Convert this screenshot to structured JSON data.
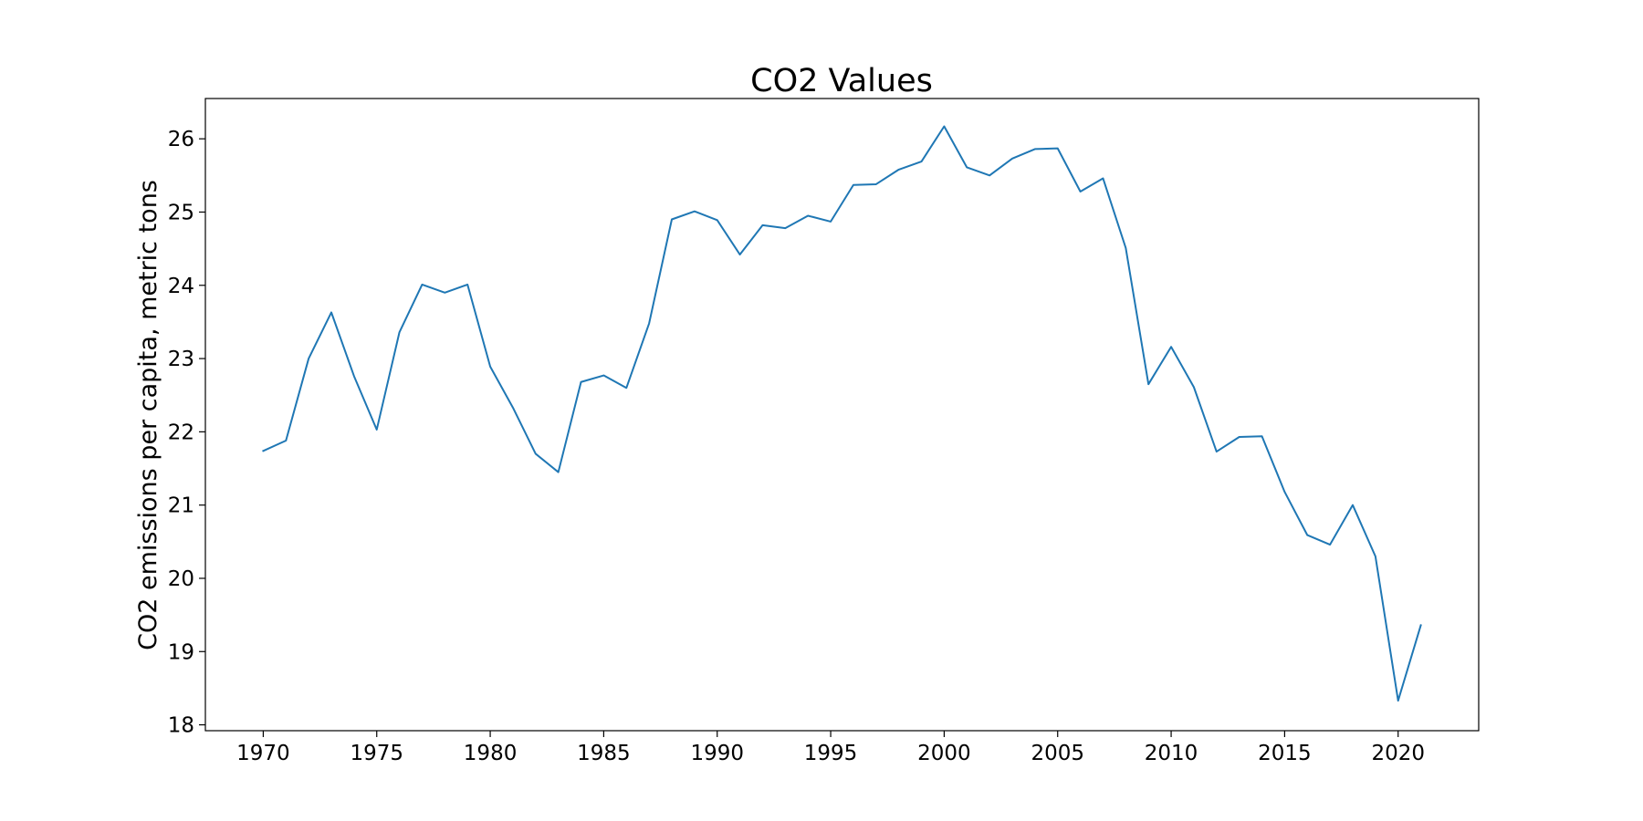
{
  "chart_data": {
    "type": "line",
    "title": "CO2 Values",
    "xlabel": "",
    "ylabel": "CO2 emissions per capita, metric tons",
    "xlim": [
      1967.45,
      2023.55
    ],
    "ylim": [
      17.92,
      26.55
    ],
    "xticks": [
      1970,
      1975,
      1980,
      1985,
      1990,
      1995,
      2000,
      2005,
      2010,
      2015,
      2020
    ],
    "yticks": [
      18,
      19,
      20,
      21,
      22,
      23,
      24,
      25,
      26
    ],
    "grid": false,
    "legend": "none",
    "line_color": "#1f77b4",
    "series": [
      {
        "x": [
          1970,
          1971,
          1972,
          1973,
          1974,
          1975,
          1976,
          1977,
          1978,
          1979,
          1980,
          1981,
          1982,
          1983,
          1984,
          1985,
          1986,
          1987,
          1988,
          1989,
          1990,
          1991,
          1992,
          1993,
          1994,
          1995,
          1996,
          1997,
          1998,
          1999,
          2000,
          2001,
          2002,
          2003,
          2004,
          2005,
          2006,
          2007,
          2008,
          2009,
          2010,
          2011,
          2012,
          2013,
          2014,
          2015,
          2016,
          2017,
          2018,
          2019,
          2020,
          2021
        ],
        "y": [
          21.74,
          21.88,
          23.0,
          23.63,
          22.76,
          22.03,
          23.36,
          24.01,
          23.9,
          24.01,
          22.89,
          22.33,
          21.7,
          21.45,
          22.68,
          22.77,
          22.6,
          23.48,
          24.9,
          25.01,
          24.89,
          24.42,
          24.82,
          24.78,
          24.95,
          24.87,
          25.37,
          25.38,
          25.58,
          25.69,
          26.17,
          25.61,
          25.5,
          25.73,
          25.86,
          25.87,
          25.28,
          25.46,
          24.51,
          22.65,
          23.16,
          22.61,
          21.73,
          21.93,
          21.94,
          21.18,
          20.59,
          20.46,
          21.0,
          20.3,
          18.33,
          19.36
        ]
      }
    ]
  }
}
